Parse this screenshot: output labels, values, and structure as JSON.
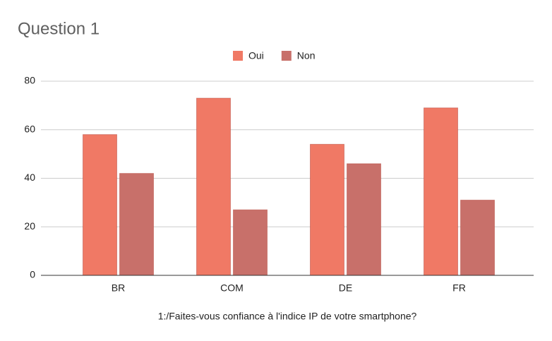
{
  "chart_data": {
    "type": "bar",
    "title": "Question 1",
    "x_label": "1:/Faites-vous confiance à l'indice IP de votre smartphone?",
    "categories": [
      "BR",
      "COM",
      "DE",
      "FR"
    ],
    "series": [
      {
        "name": "Oui",
        "color": "#f07965",
        "values": [
          58,
          73,
          54,
          69
        ]
      },
      {
        "name": "Non",
        "color": "#c8706a",
        "values": [
          42,
          27,
          46,
          31
        ]
      }
    ],
    "ylim": [
      0,
      80
    ],
    "yticks": [
      0,
      20,
      40,
      60,
      80
    ],
    "grid": true,
    "legend": "top"
  }
}
